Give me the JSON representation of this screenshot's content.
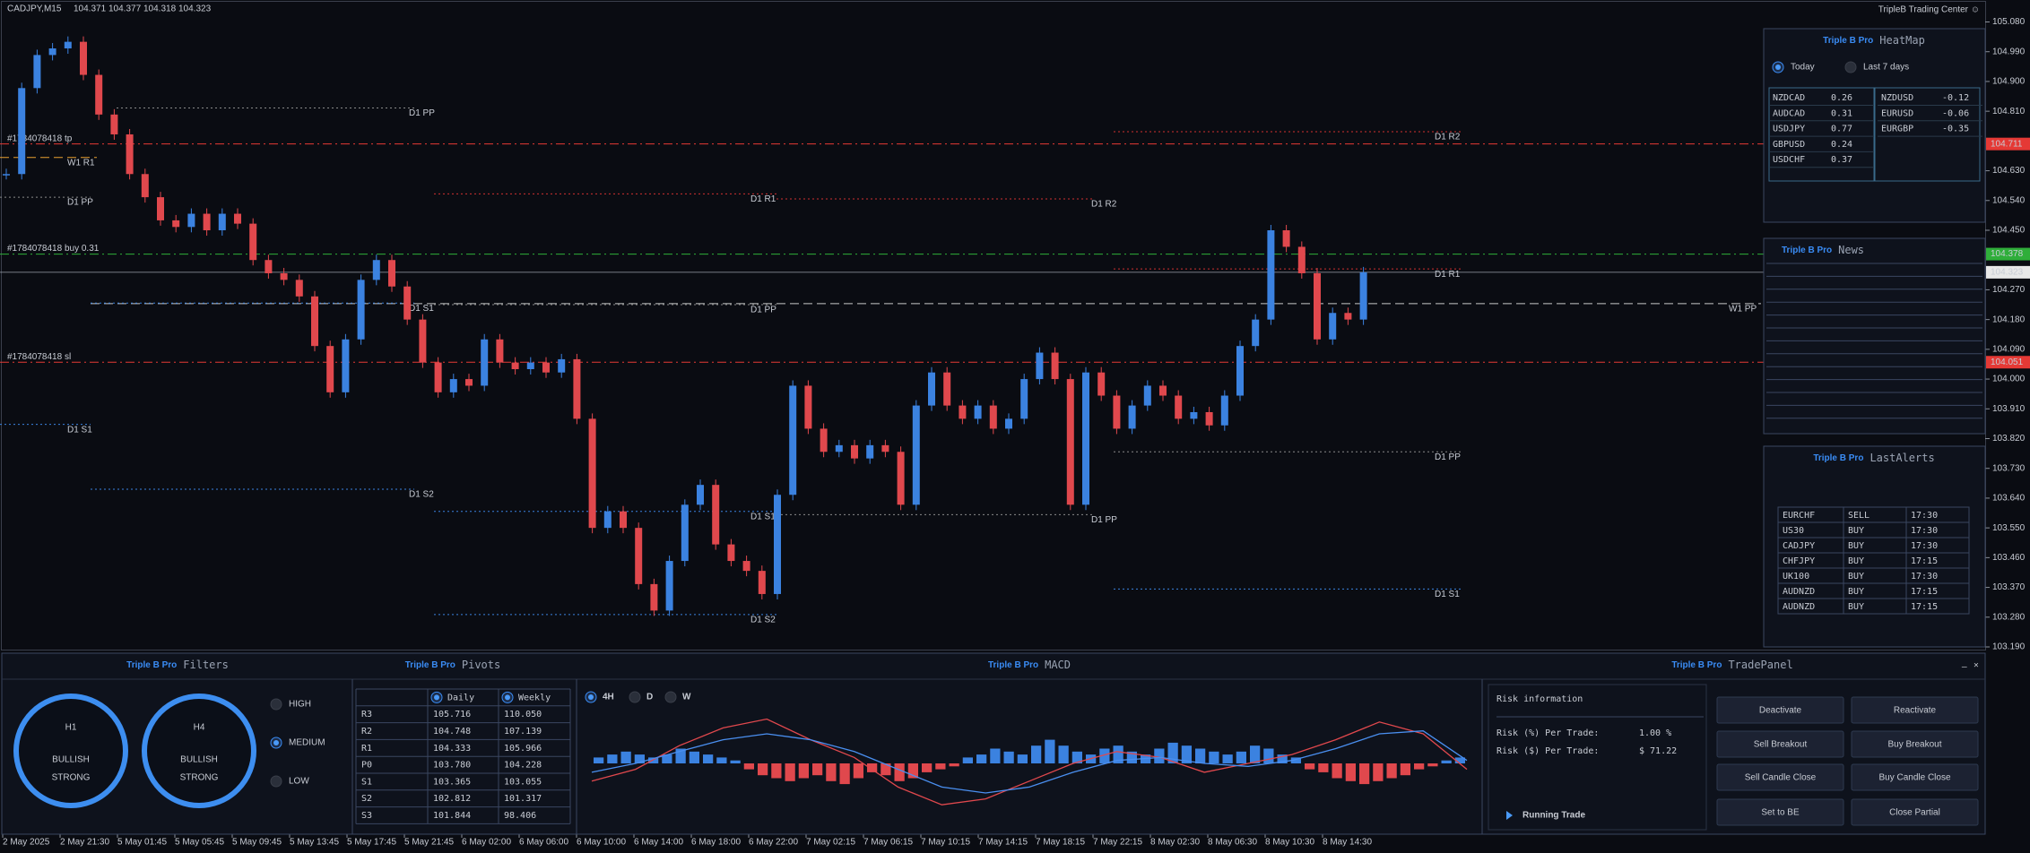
{
  "header": {
    "symbol": "CADJPY,M15",
    "ohlc": [
      104.371,
      104.377,
      104.318,
      104.323
    ],
    "brand": "TripleB Trading Center ☺"
  },
  "price_axis": {
    "ylim": [
      103.19,
      105.08
    ],
    "ticks": [
      {
        "value": 105.08,
        "label": "105.080"
      },
      {
        "value": 104.99,
        "label": "104.990"
      },
      {
        "value": 104.9,
        "label": "104.900"
      },
      {
        "value": 104.81,
        "label": "104.810"
      },
      {
        "value": 104.63,
        "label": "104.630"
      },
      {
        "value": 104.54,
        "label": "104.540"
      },
      {
        "value": 104.45,
        "label": "104.450"
      },
      {
        "value": 104.27,
        "label": "104.270"
      },
      {
        "value": 104.18,
        "label": "104.180"
      },
      {
        "value": 104.09,
        "label": "104.090"
      },
      {
        "value": 104.0,
        "label": "104.000"
      },
      {
        "value": 103.91,
        "label": "103.910"
      },
      {
        "value": 103.82,
        "label": "103.820"
      },
      {
        "value": 103.73,
        "label": "103.730"
      },
      {
        "value": 103.64,
        "label": "103.640"
      },
      {
        "value": 103.55,
        "label": "103.550"
      },
      {
        "value": 103.46,
        "label": "103.460"
      },
      {
        "value": 103.37,
        "label": "103.370"
      },
      {
        "value": 103.28,
        "label": "103.280"
      },
      {
        "value": 103.19,
        "label": "103.190"
      }
    ]
  },
  "candles": {
    "up_color": "#3b82e0",
    "down_color": "#e0484d",
    "close": [
      104.62,
      104.88,
      104.98,
      105.0,
      105.02,
      104.92,
      104.8,
      104.74,
      104.62,
      104.55,
      104.48,
      104.46,
      104.5,
      104.45,
      104.5,
      104.47,
      104.36,
      104.32,
      104.3,
      104.25,
      104.1,
      103.96,
      104.12,
      104.3,
      104.36,
      104.28,
      104.18,
      104.05,
      103.96,
      104.0,
      103.98,
      104.12,
      104.05,
      104.03,
      104.05,
      104.02,
      104.06,
      103.88,
      103.55,
      103.6,
      103.55,
      103.38,
      103.3,
      103.45,
      103.62,
      103.68,
      103.5,
      103.45,
      103.42,
      103.35,
      103.65,
      103.98,
      103.85,
      103.78,
      103.8,
      103.76,
      103.8,
      103.78,
      103.62,
      103.92,
      104.02,
      103.92,
      103.88,
      103.92,
      103.85,
      103.88,
      104.0,
      104.08,
      104.0,
      103.62,
      104.02,
      103.95,
      103.85,
      103.92,
      103.98,
      103.95,
      103.88,
      103.9,
      103.86,
      103.95,
      104.1,
      104.18,
      104.45,
      104.4,
      104.32,
      104.12,
      104.2,
      104.18,
      104.323
    ]
  },
  "levels": [
    {
      "label": "D1 PP",
      "price": 104.82,
      "color": "#8a8a8a"
    },
    {
      "label": "W1 R1",
      "price": 104.67,
      "color": "#e8a030"
    },
    {
      "label": "D1 PP",
      "price": 104.55,
      "color": "#8a8a8a"
    },
    {
      "label": "D1 R1",
      "price": 104.56,
      "color": "#d03030"
    },
    {
      "label": "D1 R2",
      "price": 104.545,
      "color": "#d03030"
    },
    {
      "label": "D1 R2",
      "price": 104.748,
      "color": "#d03030"
    },
    {
      "label": "D1 R1",
      "price": 104.333,
      "color": "#d03030"
    },
    {
      "label": "W1 PP",
      "price": 104.228,
      "color": "#c8c8c8"
    },
    {
      "label": "D1 S1",
      "price": 104.23,
      "color": "#3b82e0"
    },
    {
      "label": "D1 PP",
      "price": 104.225,
      "color": "#8a8a8a"
    },
    {
      "label": "D1 S1",
      "price": 103.863,
      "color": "#3b82e0"
    },
    {
      "label": "D1 S2",
      "price": 103.667,
      "color": "#3b82e0"
    },
    {
      "label": "D1 S1",
      "price": 103.6,
      "color": "#3b82e0"
    },
    {
      "label": "D1 PP",
      "price": 103.59,
      "color": "#8a8a8a"
    },
    {
      "label": "D1 PP",
      "price": 103.78,
      "color": "#8a8a8a"
    },
    {
      "label": "D1 S1",
      "price": 103.365,
      "color": "#3b82e0"
    },
    {
      "label": "D1 S2",
      "price": 103.288,
      "color": "#3b82e0"
    }
  ],
  "orders": [
    {
      "label": "#1784078418 tp",
      "price": 104.711,
      "color": "#e53935"
    },
    {
      "label": "#1784078418 buy 0.31",
      "price": 104.378,
      "color": "#2fae3a"
    },
    {
      "label": "#1784078418 sl",
      "price": 104.051,
      "color": "#e53935"
    }
  ],
  "time_axis": [
    "2 May 2025",
    "2 May 21:30",
    "5 May 01:45",
    "5 May 05:45",
    "5 May 09:45",
    "5 May 13:45",
    "5 May 17:45",
    "5 May 21:45",
    "6 May 02:00",
    "6 May 06:00",
    "6 May 10:00",
    "6 May 14:00",
    "6 May 18:00",
    "6 May 22:00",
    "7 May 02:15",
    "7 May 06:15",
    "7 May 10:15",
    "7 May 14:15",
    "7 May 18:15",
    "7 May 22:15",
    "8 May 02:30",
    "8 May 06:30",
    "8 May 10:30",
    "8 May 14:30"
  ],
  "heatmap": {
    "title": "Triple B Pro",
    "subtitle": "HeatMap",
    "periods": [
      "Today",
      "Last 7 days"
    ],
    "selected": 0,
    "left": [
      [
        "NZDCAD",
        0.26
      ],
      [
        "AUDCAD",
        0.31
      ],
      [
        "USDJPY",
        0.77
      ],
      [
        "GBPUSD",
        0.24
      ],
      [
        "USDCHF",
        0.37
      ]
    ],
    "right": [
      [
        "NZDUSD",
        -0.12
      ],
      [
        "EURUSD",
        -0.06
      ],
      [
        "EURGBP",
        -0.35
      ]
    ]
  },
  "news": {
    "title": "Triple B Pro",
    "subtitle": "News"
  },
  "alerts": {
    "title": "Triple B Pro",
    "subtitle": "LastAlerts",
    "rows": [
      [
        "EURCHF",
        "SELL",
        "17:30"
      ],
      [
        "US30",
        "BUY",
        "17:30"
      ],
      [
        "CADJPY",
        "BUY",
        "17:30"
      ],
      [
        "CHFJPY",
        "BUY",
        "17:15"
      ],
      [
        "UK100",
        "BUY",
        "17:30"
      ],
      [
        "AUDNZD",
        "BUY",
        "17:15"
      ],
      [
        "AUDNZD",
        "BUY",
        "17:15"
      ]
    ]
  },
  "filters": {
    "title": "Triple B Pro",
    "subtitle": "Filters",
    "gauges": [
      {
        "tf": "H1",
        "lines": [
          "BULLISH",
          "STRONG"
        ]
      },
      {
        "tf": "H4",
        "lines": [
          "BULLISH",
          "STRONG"
        ]
      }
    ],
    "levels": [
      "HIGH",
      "MEDIUM",
      "LOW"
    ],
    "selected": 1
  },
  "pivots": {
    "title": "Triple B Pro",
    "subtitle": "Pivots",
    "columns": [
      "Daily",
      "Weekly"
    ],
    "rows": [
      [
        "R3",
        "105.716",
        "110.050"
      ],
      [
        "R2",
        "104.748",
        "107.139"
      ],
      [
        "R1",
        "104.333",
        "105.966"
      ],
      [
        "P0",
        "103.780",
        "104.228"
      ],
      [
        "S1",
        "103.365",
        "103.055"
      ],
      [
        "S2",
        "102.812",
        "101.317"
      ],
      [
        "S3",
        "101.844",
        "98.406"
      ]
    ]
  },
  "macd": {
    "title": "Triple B Pro",
    "subtitle": "MACD",
    "timeframes": [
      "4H",
      "D",
      "W"
    ],
    "selected": 0,
    "histogram": [
      0.02,
      0.03,
      0.04,
      0.03,
      0.02,
      0.03,
      0.05,
      0.04,
      0.03,
      0.02,
      0.01,
      -0.02,
      -0.04,
      -0.05,
      -0.06,
      -0.05,
      -0.04,
      -0.06,
      -0.07,
      -0.05,
      -0.03,
      -0.04,
      -0.06,
      -0.05,
      -0.03,
      -0.02,
      -0.01,
      0.02,
      0.03,
      0.05,
      0.04,
      0.03,
      0.06,
      0.08,
      0.06,
      0.04,
      0.03,
      0.05,
      0.06,
      0.04,
      0.03,
      0.05,
      0.07,
      0.06,
      0.05,
      0.04,
      0.03,
      0.04,
      0.06,
      0.05,
      0.03,
      0.02,
      -0.02,
      -0.03,
      -0.05,
      -0.06,
      -0.07,
      -0.06,
      -0.05,
      -0.04,
      -0.02,
      -0.01,
      0.01,
      0.02
    ],
    "macd": [
      -0.06,
      -0.02,
      0.06,
      0.12,
      0.15,
      0.08,
      0.02,
      -0.08,
      -0.14,
      -0.12,
      -0.06,
      0.0,
      0.04,
      0.02,
      -0.03,
      0.0,
      0.03,
      0.08,
      0.14,
      0.1,
      -0.02
    ],
    "signal": [
      -0.03,
      0.0,
      0.04,
      0.08,
      0.1,
      0.08,
      0.04,
      -0.02,
      -0.08,
      -0.1,
      -0.08,
      -0.03,
      0.01,
      0.02,
      0.0,
      -0.01,
      0.01,
      0.05,
      0.1,
      0.11,
      0.01
    ],
    "macd_color": "#e0484d",
    "signal_color": "#4a8ff0",
    "up_color": "#3b82e0",
    "down_color": "#e0484d"
  },
  "trade": {
    "title": "Triple B Pro",
    "subtitle": "TradePanel",
    "minimize": "_",
    "close": "×",
    "risk_title": "Risk information",
    "risk_pct_label": "Risk (%) Per Trade:",
    "risk_pct": "1.00 %",
    "risk_usd_label": "Risk ($) Per Trade:",
    "risk_usd": "$ 71.22",
    "running": "Running Trade",
    "buttons": [
      "Deactivate",
      "Reactivate",
      "Sell Breakout",
      "Buy Breakout",
      "Sell Candle Close",
      "Buy Candle Close",
      "Set to BE",
      "Close Partial"
    ]
  }
}
